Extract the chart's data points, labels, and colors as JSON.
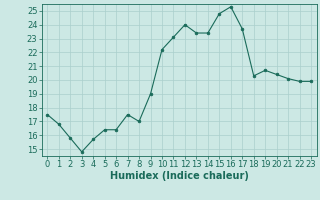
{
  "x": [
    0,
    1,
    2,
    3,
    4,
    5,
    6,
    7,
    8,
    9,
    10,
    11,
    12,
    13,
    14,
    15,
    16,
    17,
    18,
    19,
    20,
    21,
    22,
    23
  ],
  "y": [
    17.5,
    16.8,
    15.8,
    14.8,
    15.7,
    16.4,
    16.4,
    17.5,
    17.0,
    19.0,
    22.2,
    23.1,
    24.0,
    23.4,
    23.4,
    24.8,
    25.3,
    23.7,
    20.3,
    20.7,
    20.4,
    20.1,
    19.9,
    19.9
  ],
  "line_color": "#1a6b5a",
  "marker": "o",
  "marker_size": 2,
  "bg_color": "#cce8e4",
  "grid_color": "#aacfcc",
  "xlabel": "Humidex (Indice chaleur)",
  "xlabel_fontsize": 7,
  "tick_fontsize": 6,
  "ylim": [
    14.5,
    25.5
  ],
  "xlim": [
    -0.5,
    23.5
  ],
  "yticks": [
    15,
    16,
    17,
    18,
    19,
    20,
    21,
    22,
    23,
    24,
    25
  ],
  "xticks": [
    0,
    1,
    2,
    3,
    4,
    5,
    6,
    7,
    8,
    9,
    10,
    11,
    12,
    13,
    14,
    15,
    16,
    17,
    18,
    19,
    20,
    21,
    22,
    23
  ]
}
